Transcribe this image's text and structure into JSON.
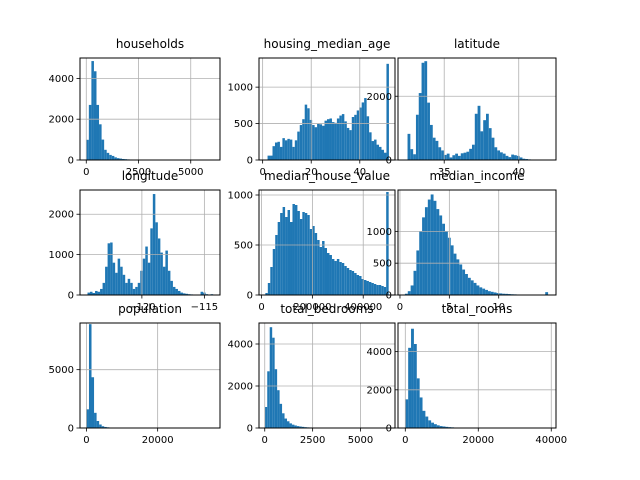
{
  "chart_data": [
    {
      "type": "bar",
      "title": "households",
      "xlim": [
        -300,
        6400
      ],
      "ylim": [
        0,
        5000
      ],
      "grid": true,
      "xticks": [
        {
          "v": 0,
          "label": "0"
        },
        {
          "v": 2500,
          "label": "2500"
        },
        {
          "v": 5000,
          "label": "5000"
        }
      ],
      "yticks": [
        {
          "v": 0,
          "label": "0"
        },
        {
          "v": 2000,
          "label": "2000"
        },
        {
          "v": 4000,
          "label": "4000"
        }
      ],
      "bin_start": 1,
      "bin_width": 122,
      "values": [
        990,
        2700,
        4850,
        4350,
        2700,
        1750,
        1000,
        500,
        350,
        250,
        200,
        130,
        90,
        70,
        50,
        40,
        30,
        25,
        20,
        15,
        12,
        10,
        8,
        6,
        5,
        4,
        4,
        3,
        3,
        2,
        2,
        2,
        2,
        1,
        1,
        1,
        1,
        1,
        1,
        1,
        1,
        1,
        1,
        1,
        0,
        0,
        0,
        0,
        0,
        1
      ]
    },
    {
      "type": "bar",
      "title": "housing_median_age",
      "xlim": [
        -1.5,
        54.5
      ],
      "ylim": [
        0,
        1400
      ],
      "grid": true,
      "xticks": [
        {
          "v": 0,
          "label": "0"
        },
        {
          "v": 20,
          "label": "20"
        },
        {
          "v": 40,
          "label": "40"
        }
      ],
      "yticks": [
        {
          "v": 0,
          "label": "0"
        },
        {
          "v": 500,
          "label": "500"
        },
        {
          "v": 1000,
          "label": "1000"
        }
      ],
      "bin_start": 1,
      "bin_width": 1.02,
      "values": [
        5,
        60,
        60,
        190,
        240,
        250,
        180,
        300,
        270,
        290,
        280,
        180,
        270,
        390,
        480,
        560,
        760,
        710,
        550,
        480,
        450,
        500,
        490,
        470,
        540,
        560,
        570,
        520,
        510,
        570,
        610,
        630,
        530,
        440,
        410,
        590,
        620,
        680,
        720,
        790,
        850,
        600,
        380,
        260,
        280,
        210,
        180,
        140,
        100,
        1320
      ]
    },
    {
      "type": "bar",
      "title": "latitude",
      "xlim": [
        31.9,
        42.5
      ],
      "ylim": [
        0,
        3200
      ],
      "grid": true,
      "xticks": [
        {
          "v": 35,
          "label": "35"
        },
        {
          "v": 40,
          "label": "40"
        }
      ],
      "yticks": [
        {
          "v": 0,
          "label": "0"
        },
        {
          "v": 2000,
          "label": "2000"
        }
      ],
      "bin_start": 32.54,
      "bin_width": 0.188,
      "values": [
        820,
        340,
        180,
        1420,
        2100,
        3050,
        3100,
        1800,
        1100,
        700,
        600,
        400,
        300,
        160,
        200,
        80,
        150,
        200,
        130,
        210,
        230,
        260,
        350,
        480,
        1450,
        1700,
        900,
        1250,
        1450,
        1000,
        700,
        400,
        300,
        240,
        200,
        130,
        90,
        170,
        150,
        130,
        80,
        40,
        30,
        20,
        10,
        10,
        10,
        5,
        5,
        5
      ]
    },
    {
      "type": "bar",
      "title": "longitude",
      "xlim": [
        -124.95,
        -113.75
      ],
      "ylim": [
        0,
        2600
      ],
      "grid": true,
      "xticks": [
        {
          "v": -120,
          "label": "−120"
        },
        {
          "v": -115,
          "label": "−115"
        }
      ],
      "yticks": [
        {
          "v": 0,
          "label": "0"
        },
        {
          "v": 1000,
          "label": "1000"
        },
        {
          "v": 2000,
          "label": "2000"
        }
      ],
      "bin_start": -124.35,
      "bin_width": 0.201,
      "values": [
        60,
        80,
        50,
        100,
        80,
        150,
        300,
        700,
        1280,
        1300,
        800,
        550,
        900,
        700,
        500,
        300,
        400,
        300,
        150,
        200,
        300,
        600,
        900,
        1200,
        800,
        1650,
        2500,
        1800,
        1400,
        1050,
        700,
        1100,
        600,
        350,
        200,
        150,
        100,
        60,
        40,
        30,
        20,
        15,
        10,
        10,
        10,
        80,
        60,
        20,
        10,
        20
      ]
    },
    {
      "type": "bar",
      "title": "median_house_value",
      "xlim": [
        -10000,
        525000
      ],
      "ylim": [
        0,
        1050
      ],
      "grid": true,
      "xticks": [
        {
          "v": 0,
          "label": "0"
        },
        {
          "v": 200000,
          "label": "200000"
        },
        {
          "v": 400000,
          "label": "400000"
        }
      ],
      "yticks": [
        {
          "v": 0,
          "label": "0"
        },
        {
          "v": 500,
          "label": "500"
        },
        {
          "v": 1000,
          "label": "1000"
        }
      ],
      "bin_start": 14999,
      "bin_width": 9700,
      "values": [
        20,
        120,
        280,
        460,
        600,
        730,
        820,
        880,
        780,
        850,
        730,
        910,
        900,
        840,
        760,
        830,
        820,
        800,
        660,
        690,
        620,
        550,
        480,
        540,
        470,
        420,
        400,
        360,
        340,
        360,
        330,
        320,
        290,
        270,
        250,
        240,
        220,
        200,
        190,
        160,
        150,
        140,
        130,
        120,
        110,
        100,
        100,
        90,
        80,
        1030
      ]
    },
    {
      "type": "bar",
      "title": "median_income",
      "xlim": [
        -0.2,
        15.8
      ],
      "ylim": [
        0,
        1650
      ],
      "grid": true,
      "xticks": [
        {
          "v": 0,
          "label": "0"
        },
        {
          "v": 5,
          "label": "5"
        },
        {
          "v": 10,
          "label": "10"
        }
      ],
      "yticks": [
        {
          "v": 0,
          "label": "0"
        },
        {
          "v": 500,
          "label": "500"
        },
        {
          "v": 1000,
          "label": "1000"
        }
      ],
      "bin_start": 0.5,
      "bin_width": 0.29,
      "values": [
        20,
        60,
        150,
        380,
        700,
        1000,
        1220,
        1380,
        1500,
        1580,
        1480,
        1350,
        1250,
        1120,
        1000,
        900,
        780,
        650,
        560,
        480,
        400,
        330,
        270,
        230,
        190,
        150,
        120,
        100,
        80,
        60,
        50,
        40,
        30,
        25,
        20,
        18,
        15,
        12,
        10,
        8,
        7,
        6,
        5,
        5,
        5,
        4,
        4,
        3,
        3,
        45
      ]
    },
    {
      "type": "bar",
      "title": "population",
      "xlim": [
        -1800,
        37500
      ],
      "ylim": [
        0,
        9000
      ],
      "grid": true,
      "xticks": [
        {
          "v": 0,
          "label": "0"
        },
        {
          "v": 20000,
          "label": "20000"
        }
      ],
      "yticks": [
        {
          "v": 0,
          "label": "0"
        },
        {
          "v": 5000,
          "label": "5000"
        }
      ],
      "bin_start": 3,
      "bin_width": 714,
      "values": [
        1600,
        8900,
        4350,
        1300,
        600,
        300,
        150,
        90,
        60,
        40,
        30,
        20,
        15,
        10,
        8,
        6,
        5,
        4,
        3,
        3,
        2,
        2,
        2,
        1,
        1,
        1,
        1,
        1,
        1,
        1,
        1,
        1,
        1,
        1,
        1,
        1,
        1,
        1,
        1,
        1,
        1,
        1,
        1,
        1,
        1,
        1,
        1,
        1,
        1,
        1
      ]
    },
    {
      "type": "bar",
      "title": "total_bedrooms",
      "xlim": [
        -300,
        6800
      ],
      "ylim": [
        0,
        5000
      ],
      "grid": true,
      "xticks": [
        {
          "v": 0,
          "label": "0"
        },
        {
          "v": 2500,
          "label": "2500"
        },
        {
          "v": 5000,
          "label": "5000"
        }
      ],
      "yticks": [
        {
          "v": 0,
          "label": "0"
        },
        {
          "v": 2000,
          "label": "2000"
        },
        {
          "v": 4000,
          "label": "4000"
        }
      ],
      "bin_start": 1,
      "bin_width": 129,
      "values": [
        1000,
        2700,
        4800,
        4300,
        2800,
        1800,
        1150,
        700,
        450,
        320,
        220,
        160,
        120,
        90,
        70,
        55,
        40,
        30,
        25,
        20,
        15,
        12,
        10,
        8,
        6,
        5,
        4,
        3,
        3,
        2,
        2,
        2,
        1,
        1,
        1,
        1,
        1,
        1,
        1,
        1,
        1,
        1,
        1,
        0,
        0,
        0,
        0,
        0,
        0,
        1
      ]
    },
    {
      "type": "bar",
      "title": "total_rooms",
      "xlim": [
        -2000,
        41300
      ],
      "ylim": [
        0,
        5500
      ],
      "grid": true,
      "xticks": [
        {
          "v": 0,
          "label": "0"
        },
        {
          "v": 20000,
          "label": "20000"
        },
        {
          "v": 40000,
          "label": "40000"
        }
      ],
      "yticks": [
        {
          "v": 0,
          "label": "0"
        },
        {
          "v": 2000,
          "label": "2000"
        },
        {
          "v": 4000,
          "label": "4000"
        }
      ],
      "bin_start": 2,
      "bin_width": 786,
      "values": [
        1500,
        4200,
        5200,
        4400,
        2600,
        1600,
        900,
        600,
        400,
        280,
        200,
        140,
        100,
        80,
        60,
        45,
        35,
        25,
        20,
        15,
        12,
        10,
        8,
        6,
        5,
        4,
        3,
        3,
        2,
        2,
        2,
        1,
        1,
        1,
        1,
        1,
        1,
        1,
        1,
        1,
        1,
        1,
        1,
        1,
        0,
        0,
        0,
        0,
        0,
        1
      ]
    }
  ]
}
